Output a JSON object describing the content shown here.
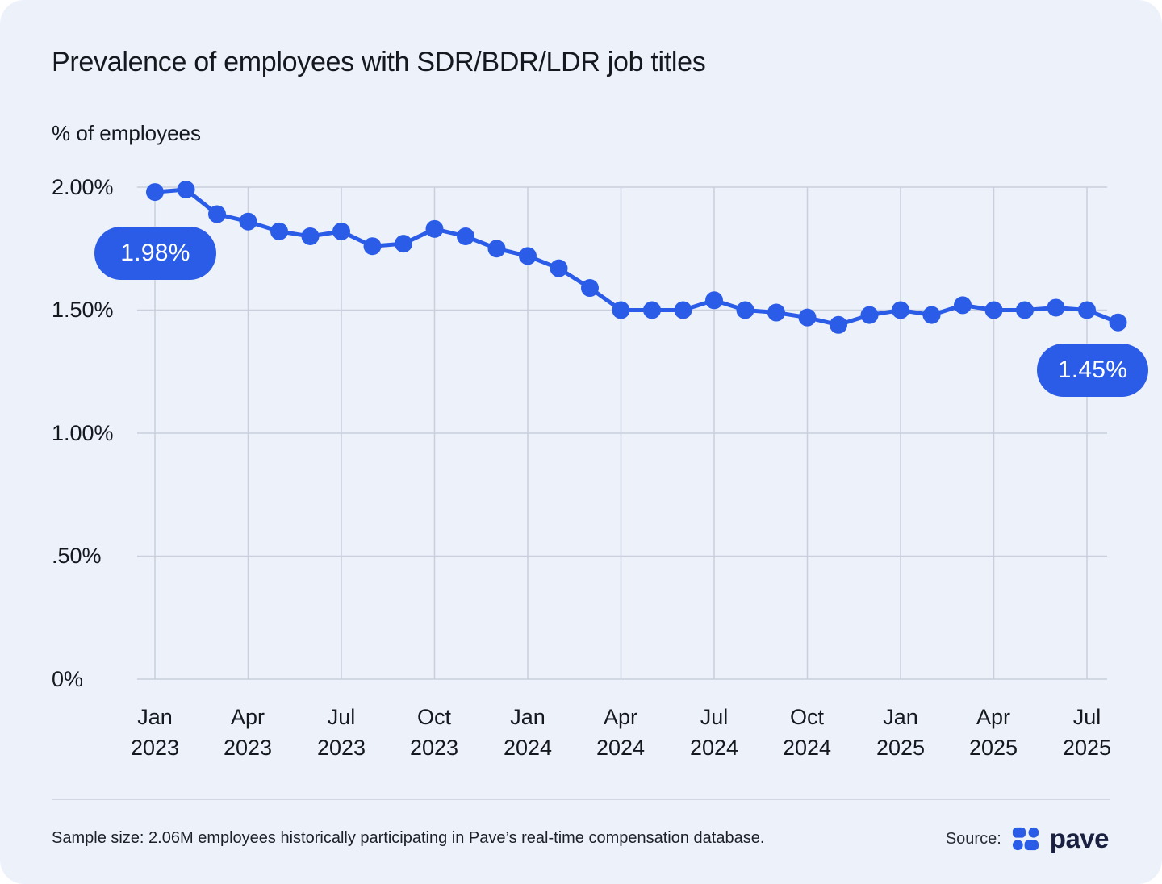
{
  "page": {
    "title": "Prevalence of employees with SDR/BDR/LDR job titles"
  },
  "chart_data": {
    "type": "line",
    "title": "Prevalence of employees with SDR/BDR/LDR job titles",
    "ylabel": "% of employees",
    "xlabel": "",
    "ylim": [
      0,
      2.0
    ],
    "grid": true,
    "legend": false,
    "line_color": "#2b5ce8",
    "x": [
      "Jan 2023",
      "Feb 2023",
      "Mar 2023",
      "Apr 2023",
      "May 2023",
      "Jun 2023",
      "Jul 2023",
      "Aug 2023",
      "Sep 2023",
      "Oct 2023",
      "Nov 2023",
      "Dec 2023",
      "Jan 2024",
      "Feb 2024",
      "Mar 2024",
      "Apr 2024",
      "May 2024",
      "Jun 2024",
      "Jul 2024",
      "Aug 2024",
      "Sep 2024",
      "Oct 2024",
      "Nov 2024",
      "Dec 2024",
      "Jan 2025",
      "Feb 2025",
      "Mar 2025",
      "Apr 2025",
      "May 2025",
      "Jun 2025",
      "Jul 2025",
      "Aug 2025"
    ],
    "values": [
      1.98,
      1.99,
      1.89,
      1.86,
      1.82,
      1.8,
      1.82,
      1.76,
      1.77,
      1.83,
      1.8,
      1.75,
      1.72,
      1.67,
      1.59,
      1.5,
      1.5,
      1.5,
      1.54,
      1.5,
      1.49,
      1.47,
      1.44,
      1.48,
      1.5,
      1.48,
      1.52,
      1.5,
      1.5,
      1.51,
      1.5,
      1.45
    ],
    "yticks": [
      {
        "value": 2.0,
        "label": "2.00%"
      },
      {
        "value": 1.5,
        "label": "1.50%"
      },
      {
        "value": 1.0,
        "label": "1.00%"
      },
      {
        "value": 0.5,
        "label": ".50%"
      },
      {
        "value": 0.0,
        "label": "0%"
      }
    ],
    "xticks": [
      {
        "month": "Jan",
        "year": "2023"
      },
      {
        "month": "Apr",
        "year": "2023"
      },
      {
        "month": "Jul",
        "year": "2023"
      },
      {
        "month": "Oct",
        "year": "2023"
      },
      {
        "month": "Jan",
        "year": "2024"
      },
      {
        "month": "Apr",
        "year": "2024"
      },
      {
        "month": "Jul",
        "year": "2024"
      },
      {
        "month": "Oct",
        "year": "2024"
      },
      {
        "month": "Jan",
        "year": "2025"
      },
      {
        "month": "Apr",
        "year": "2025"
      },
      {
        "month": "Jul",
        "year": "2025"
      }
    ],
    "annotations": [
      {
        "label": "1.98%",
        "x": "Jan 2023",
        "value": 1.98
      },
      {
        "label": "1.45%",
        "x": "Aug 2025",
        "value": 1.45
      }
    ]
  },
  "footer": {
    "sample_note": "Sample size: 2.06M employees historically participating in Pave’s real-time compensation database.",
    "source_label": "Source:",
    "source_brand": "pave"
  },
  "colors": {
    "accent": "#2b5ce8",
    "card_background": "#edf1f9",
    "gridline": "#c9cfdc",
    "text": "#15181e",
    "logo_wordmark": "#1a2140"
  }
}
